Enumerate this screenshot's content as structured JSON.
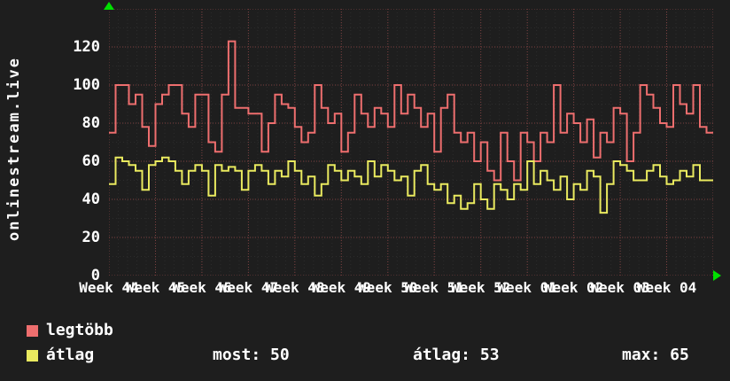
{
  "colors": {
    "background": "#1e1e1e",
    "text": "#ffffff",
    "major_grid": "#7c3f3f",
    "minor_grid": "#2c2c2c",
    "axis_arrow": "#00e000",
    "series_legtobb": "#ee6e6e",
    "series_atlag": "#eaea5f"
  },
  "watermark": {
    "text": "onlinestream.live"
  },
  "chart_data": {
    "type": "line",
    "style": "step",
    "title": "",
    "xlabel": "",
    "ylabel": "",
    "ylim": [
      0,
      140
    ],
    "yticks": [
      0,
      20,
      40,
      60,
      80,
      100,
      120
    ],
    "grid": true,
    "legend_position": "bottom-left",
    "x_week_labels": [
      "Week 44",
      "Week 45",
      "Week 46",
      "Week 47",
      "Week 48",
      "Week 49",
      "Week 50",
      "Week 51",
      "Week 52",
      "Week 01",
      "Week 02",
      "Week 03",
      "Week 04"
    ],
    "series": [
      {
        "name": "legtöbb",
        "color": "#ee6e6e",
        "values": [
          75,
          100,
          100,
          90,
          95,
          78,
          68,
          90,
          95,
          100,
          100,
          85,
          78,
          95,
          95,
          70,
          65,
          95,
          123,
          88,
          88,
          85,
          85,
          65,
          80,
          95,
          90,
          88,
          78,
          70,
          75,
          100,
          88,
          80,
          85,
          65,
          75,
          95,
          85,
          78,
          88,
          85,
          78,
          100,
          85,
          95,
          88,
          78,
          85,
          65,
          88,
          95,
          75,
          70,
          75,
          60,
          70,
          55,
          50,
          75,
          60,
          50,
          75,
          70,
          60,
          75,
          70,
          100,
          75,
          85,
          80,
          70,
          82,
          62,
          75,
          70,
          88,
          85,
          60,
          75,
          100,
          95,
          88,
          80,
          78,
          100,
          90,
          85,
          100,
          78,
          75
        ]
      },
      {
        "name": "átlag",
        "color": "#eaea5f",
        "values": [
          48,
          62,
          60,
          58,
          55,
          45,
          58,
          60,
          62,
          60,
          55,
          48,
          55,
          58,
          55,
          42,
          58,
          55,
          57,
          55,
          45,
          55,
          58,
          55,
          48,
          55,
          52,
          60,
          55,
          48,
          52,
          42,
          48,
          58,
          55,
          50,
          55,
          52,
          48,
          60,
          52,
          58,
          55,
          50,
          52,
          42,
          55,
          58,
          48,
          45,
          48,
          38,
          42,
          35,
          38,
          48,
          40,
          35,
          48,
          45,
          40,
          48,
          45,
          60,
          48,
          55,
          50,
          45,
          52,
          40,
          48,
          45,
          55,
          52,
          33,
          48,
          60,
          58,
          55,
          50,
          50,
          55,
          58,
          52,
          48,
          50,
          55,
          52,
          58,
          50,
          50
        ]
      }
    ]
  },
  "stats": {
    "most": "most: 50",
    "avg": "átlag: 53",
    "max": "max: 65"
  }
}
